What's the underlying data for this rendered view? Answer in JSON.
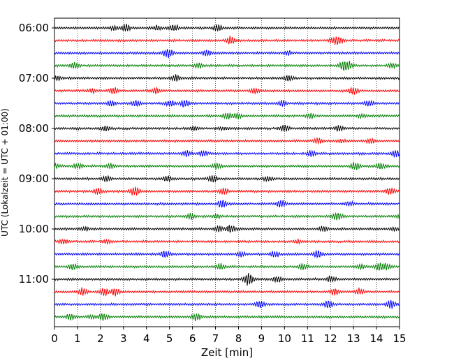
{
  "chart_data": {
    "type": "line",
    "xlabel": "Zeit  [min]",
    "ylabel": "UTC (Lokalzeit = UTC + 01:00)",
    "xlim": [
      0,
      15
    ],
    "x_ticks": [
      0,
      1,
      2,
      3,
      4,
      5,
      6,
      7,
      8,
      9,
      10,
      11,
      12,
      13,
      14,
      15
    ],
    "y_ticks": [
      "06:00",
      "07:00",
      "08:00",
      "09:00",
      "10:00",
      "11:00"
    ],
    "grid": "vertical dotted lines at each minute",
    "trace_interval_min": 15,
    "start_time": "06:00",
    "trace_count": 24,
    "trace_colors": [
      "#000000",
      "#ff0000",
      "#0000ff",
      "#007f00"
    ]
  }
}
